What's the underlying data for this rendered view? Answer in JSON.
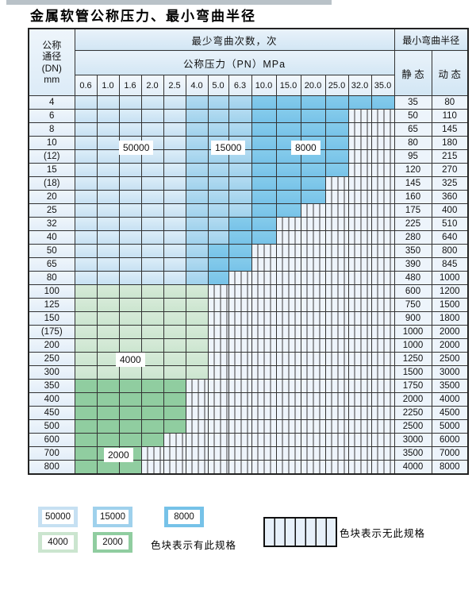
{
  "title": "金属软管公称压力、最小弯曲半径",
  "colors": {
    "blue_50000": "#cfe4f3",
    "blue_15000": "#a8d6ef",
    "blue_8000": "#7dc6e9",
    "green_4000": "#cfe7d2",
    "green_2000": "#90cda0",
    "striped_bg": "#eef4fb",
    "header_bg": "#d9e9f6",
    "border": "#333333"
  },
  "cell_codes": {
    "b1": "50000",
    "b2": "15000",
    "b3": "8000",
    "g1": "4000",
    "g2": "2000",
    "x": "无此规格"
  },
  "table": {
    "corner": {
      "line1": "公称",
      "line2": "通径",
      "line3": "(DN)",
      "line4": "mm"
    },
    "header_top": "最少弯曲次数，次",
    "header_radius": "最小弯曲半径",
    "header_pressure": "公称压力（PN）MPa",
    "static_label": "静 态",
    "dynamic_label": "动 态",
    "pressure_columns": [
      "0.6",
      "1.0",
      "1.6",
      "2.0",
      "2.5",
      "4.0",
      "5.0",
      "6.3",
      "10.0",
      "15.0",
      "20.0",
      "25.0",
      "32.0",
      "35.0"
    ],
    "rows": [
      {
        "dn": "4",
        "static": "35",
        "dynamic": "80",
        "cells": [
          "b1",
          "b1",
          "b1",
          "b1",
          "b1",
          "b2",
          "b2",
          "b2",
          "b3",
          "b3",
          "b3",
          "b3",
          "b3",
          "b3"
        ]
      },
      {
        "dn": "6",
        "static": "50",
        "dynamic": "110",
        "cells": [
          "b1",
          "b1",
          "b1",
          "b1",
          "b1",
          "b2",
          "b2",
          "b2",
          "b3",
          "b3",
          "b3",
          "b3",
          "x",
          "x"
        ]
      },
      {
        "dn": "8",
        "static": "65",
        "dynamic": "145",
        "cells": [
          "b1",
          "b1",
          "b1",
          "b1",
          "b1",
          "b2",
          "b2",
          "b2",
          "b3",
          "b3",
          "b3",
          "b3",
          "x",
          "x"
        ]
      },
      {
        "dn": "10",
        "static": "80",
        "dynamic": "180",
        "cells": [
          "b1",
          "b1",
          "b1",
          "b1",
          "b1",
          "b2",
          "b2",
          "b2",
          "b3",
          "b3",
          "b3",
          "b3",
          "x",
          "x"
        ]
      },
      {
        "dn": "(12)",
        "static": "95",
        "dynamic": "215",
        "cells": [
          "b1",
          "b1",
          "b1",
          "b1",
          "b1",
          "b2",
          "b2",
          "b2",
          "b3",
          "b3",
          "b3",
          "b3",
          "x",
          "x"
        ]
      },
      {
        "dn": "15",
        "static": "120",
        "dynamic": "270",
        "cells": [
          "b1",
          "b1",
          "b1",
          "b1",
          "b1",
          "b2",
          "b2",
          "b2",
          "b3",
          "b3",
          "b3",
          "b3",
          "x",
          "x"
        ]
      },
      {
        "dn": "(18)",
        "static": "145",
        "dynamic": "325",
        "cells": [
          "b1",
          "b1",
          "b1",
          "b1",
          "b1",
          "b2",
          "b2",
          "b2",
          "b3",
          "b3",
          "b3",
          "x",
          "x",
          "x"
        ]
      },
      {
        "dn": "20",
        "static": "160",
        "dynamic": "360",
        "cells": [
          "b1",
          "b1",
          "b1",
          "b1",
          "b1",
          "b2",
          "b2",
          "b2",
          "b3",
          "b3",
          "b3",
          "x",
          "x",
          "x"
        ]
      },
      {
        "dn": "25",
        "static": "175",
        "dynamic": "400",
        "cells": [
          "b1",
          "b1",
          "b1",
          "b1",
          "b1",
          "b2",
          "b2",
          "b2",
          "b3",
          "b3",
          "x",
          "x",
          "x",
          "x"
        ]
      },
      {
        "dn": "32",
        "static": "225",
        "dynamic": "510",
        "cells": [
          "b1",
          "b1",
          "b1",
          "b1",
          "b1",
          "b2",
          "b2",
          "b3",
          "b3",
          "x",
          "x",
          "x",
          "x",
          "x"
        ]
      },
      {
        "dn": "40",
        "static": "280",
        "dynamic": "640",
        "cells": [
          "b1",
          "b1",
          "b1",
          "b1",
          "b1",
          "b2",
          "b2",
          "b3",
          "b3",
          "x",
          "x",
          "x",
          "x",
          "x"
        ]
      },
      {
        "dn": "50",
        "static": "350",
        "dynamic": "800",
        "cells": [
          "b1",
          "b1",
          "b1",
          "b1",
          "b1",
          "b2",
          "b3",
          "b3",
          "x",
          "x",
          "x",
          "x",
          "x",
          "x"
        ]
      },
      {
        "dn": "65",
        "static": "390",
        "dynamic": "845",
        "cells": [
          "b1",
          "b1",
          "b1",
          "b1",
          "b1",
          "b2",
          "b3",
          "b3",
          "x",
          "x",
          "x",
          "x",
          "x",
          "x"
        ]
      },
      {
        "dn": "80",
        "static": "480",
        "dynamic": "1000",
        "cells": [
          "b1",
          "b1",
          "b1",
          "b1",
          "b1",
          "b2",
          "b3",
          "x",
          "x",
          "x",
          "x",
          "x",
          "x",
          "x"
        ]
      },
      {
        "dn": "100",
        "static": "600",
        "dynamic": "1200",
        "cells": [
          "g1",
          "g1",
          "g1",
          "g1",
          "g1",
          "g1",
          "x",
          "x",
          "x",
          "x",
          "x",
          "x",
          "x",
          "x"
        ]
      },
      {
        "dn": "125",
        "static": "750",
        "dynamic": "1500",
        "cells": [
          "g1",
          "g1",
          "g1",
          "g1",
          "g1",
          "g1",
          "x",
          "x",
          "x",
          "x",
          "x",
          "x",
          "x",
          "x"
        ]
      },
      {
        "dn": "150",
        "static": "900",
        "dynamic": "1800",
        "cells": [
          "g1",
          "g1",
          "g1",
          "g1",
          "g1",
          "g1",
          "x",
          "x",
          "x",
          "x",
          "x",
          "x",
          "x",
          "x"
        ]
      },
      {
        "dn": "(175)",
        "static": "1000",
        "dynamic": "2000",
        "cells": [
          "g1",
          "g1",
          "g1",
          "g1",
          "g1",
          "g1",
          "x",
          "x",
          "x",
          "x",
          "x",
          "x",
          "x",
          "x"
        ]
      },
      {
        "dn": "200",
        "static": "1000",
        "dynamic": "2000",
        "cells": [
          "g1",
          "g1",
          "g1",
          "g1",
          "g1",
          "g1",
          "x",
          "x",
          "x",
          "x",
          "x",
          "x",
          "x",
          "x"
        ]
      },
      {
        "dn": "250",
        "static": "1250",
        "dynamic": "2500",
        "cells": [
          "g1",
          "g1",
          "g1",
          "g1",
          "g1",
          "g1",
          "x",
          "x",
          "x",
          "x",
          "x",
          "x",
          "x",
          "x"
        ]
      },
      {
        "dn": "300",
        "static": "1500",
        "dynamic": "3000",
        "cells": [
          "g1",
          "g1",
          "g1",
          "g1",
          "g1",
          "g1",
          "x",
          "x",
          "x",
          "x",
          "x",
          "x",
          "x",
          "x"
        ]
      },
      {
        "dn": "350",
        "static": "1750",
        "dynamic": "3500",
        "cells": [
          "g2",
          "g2",
          "g2",
          "g2",
          "g2",
          "x",
          "x",
          "x",
          "x",
          "x",
          "x",
          "x",
          "x",
          "x"
        ]
      },
      {
        "dn": "400",
        "static": "2000",
        "dynamic": "4000",
        "cells": [
          "g2",
          "g2",
          "g2",
          "g2",
          "g2",
          "x",
          "x",
          "x",
          "x",
          "x",
          "x",
          "x",
          "x",
          "x"
        ]
      },
      {
        "dn": "450",
        "static": "2250",
        "dynamic": "4500",
        "cells": [
          "g2",
          "g2",
          "g2",
          "g2",
          "g2",
          "x",
          "x",
          "x",
          "x",
          "x",
          "x",
          "x",
          "x",
          "x"
        ]
      },
      {
        "dn": "500",
        "static": "2500",
        "dynamic": "5000",
        "cells": [
          "g2",
          "g2",
          "g2",
          "g2",
          "g2",
          "x",
          "x",
          "x",
          "x",
          "x",
          "x",
          "x",
          "x",
          "x"
        ]
      },
      {
        "dn": "600",
        "static": "3000",
        "dynamic": "6000",
        "cells": [
          "g2",
          "g2",
          "g2",
          "g2",
          "x",
          "x",
          "x",
          "x",
          "x",
          "x",
          "x",
          "x",
          "x",
          "x"
        ]
      },
      {
        "dn": "700",
        "static": "3500",
        "dynamic": "7000",
        "cells": [
          "g2",
          "g2",
          "g2",
          "x",
          "x",
          "x",
          "x",
          "x",
          "x",
          "x",
          "x",
          "x",
          "x",
          "x"
        ]
      },
      {
        "dn": "800",
        "static": "4000",
        "dynamic": "8000",
        "cells": [
          "g2",
          "g2",
          "g2",
          "x",
          "x",
          "x",
          "x",
          "x",
          "x",
          "x",
          "x",
          "x",
          "x",
          "x"
        ]
      }
    ]
  },
  "overlay_labels": [
    {
      "text": "50000"
    },
    {
      "text": "15000"
    },
    {
      "text": "8000"
    },
    {
      "text": "4000"
    },
    {
      "text": "2000"
    }
  ],
  "legend": {
    "swatches": [
      {
        "label": "50000",
        "color": "#c6e0f2"
      },
      {
        "label": "15000",
        "color": "#9fd1ec"
      },
      {
        "label": "8000",
        "color": "#76c2e8"
      },
      {
        "label": "4000",
        "color": "#cbe5cf"
      },
      {
        "label": "2000",
        "color": "#90cda0"
      }
    ],
    "has_spec_text": "色块表示有此规格",
    "no_spec_text": "色块表示无此规格"
  }
}
